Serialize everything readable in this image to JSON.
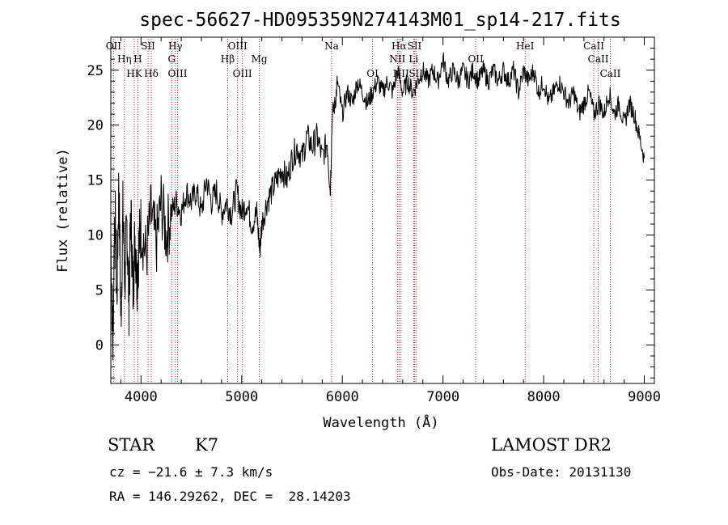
{
  "chart_data": {
    "type": "line",
    "title": "spec-56627-HD095359N274143M01_sp14-217.fits",
    "xlabel": "Wavelength (Å)",
    "ylabel": "Flux (relative)",
    "xlim": [
      3700,
      9100
    ],
    "ylim": [
      -3.5,
      28
    ],
    "xticks": [
      4000,
      5000,
      6000,
      7000,
      8000,
      9000
    ],
    "yticks": [
      0,
      5,
      10,
      15,
      20,
      25
    ],
    "grid": false,
    "line_color": "#000000",
    "marker_color": "#b22222",
    "series": [
      {
        "x": [
          3700,
          3720,
          3740,
          3760,
          3780,
          3800,
          3820,
          3840,
          3860,
          3880,
          3900,
          3920,
          3940,
          3960,
          3980,
          4000,
          4050,
          4100,
          4150,
          4200,
          4250,
          4300,
          4350,
          4400,
          4450,
          4500,
          4550,
          4600,
          4650,
          4700,
          4750,
          4800,
          4850,
          4900,
          4950,
          5000,
          5050,
          5100,
          5150,
          5180,
          5200,
          5250,
          5300,
          5350,
          5400,
          5450,
          5500,
          5550,
          5600,
          5650,
          5700,
          5750,
          5800,
          5850,
          5880,
          5900,
          5930,
          5950,
          6000,
          6050,
          6100,
          6150,
          6200,
          6250,
          6300,
          6350,
          6400,
          6450,
          6500,
          6550,
          6600,
          6650,
          6700,
          6750,
          6800,
          6850,
          6900,
          6950,
          7000,
          7050,
          7100,
          7150,
          7200,
          7250,
          7300,
          7350,
          7400,
          7450,
          7500,
          7550,
          7600,
          7650,
          7700,
          7750,
          7800,
          7850,
          7900,
          7950,
          8000,
          8050,
          8100,
          8150,
          8200,
          8250,
          8300,
          8350,
          8400,
          8450,
          8500,
          8550,
          8600,
          8650,
          8700,
          8750,
          8800,
          8850,
          8900,
          8950,
          9000
        ],
        "y": [
          10,
          0,
          13,
          4,
          15,
          2,
          12,
          6,
          11,
          4,
          12,
          5,
          10,
          6,
          9,
          11,
          8,
          12,
          9,
          13,
          10,
          12,
          13,
          12,
          14,
          13,
          14,
          12,
          15,
          13,
          14,
          12,
          13,
          12,
          14,
          12,
          13,
          11,
          12,
          8.5,
          11,
          13,
          14,
          15,
          16,
          15,
          17,
          18,
          17,
          19,
          18,
          19,
          17,
          18.5,
          14,
          21,
          22,
          24,
          21,
          23,
          22,
          24,
          23,
          22,
          23,
          24,
          23,
          24,
          23,
          25,
          23,
          24,
          23,
          24,
          25,
          24,
          25,
          24,
          26,
          24,
          25,
          24,
          25,
          24,
          25,
          24,
          25,
          24,
          25,
          24,
          25,
          24,
          25,
          23,
          25,
          24,
          25,
          23,
          24,
          22,
          23,
          24,
          23,
          22,
          23,
          21,
          22,
          23,
          21,
          22,
          21,
          23,
          21,
          22,
          20,
          22,
          21,
          19,
          17
        ]
      }
    ],
    "spectral_lines": [
      {
        "label": "OII",
        "x": 3727,
        "row": 0
      },
      {
        "label": "Hη",
        "x": 3835,
        "row": 1
      },
      {
        "label": "H",
        "x": 3968,
        "row": 1
      },
      {
        "label": "HK",
        "x": 3933,
        "row": 2
      },
      {
        "label": "Hδ",
        "x": 4102,
        "row": 2
      },
      {
        "label": "SII",
        "x": 4070,
        "row": 0
      },
      {
        "label": "Hγ",
        "x": 4341,
        "row": 0
      },
      {
        "label": "G",
        "x": 4305,
        "row": 1
      },
      {
        "label": "OIII",
        "x": 4363,
        "row": 2
      },
      {
        "label": "OIII",
        "x": 4959,
        "row": 0
      },
      {
        "label": "Hβ",
        "x": 4861,
        "row": 1
      },
      {
        "label": "OIII",
        "x": 5007,
        "row": 2
      },
      {
        "label": "Mg",
        "x": 5175,
        "row": 1
      },
      {
        "label": "Na",
        "x": 5893,
        "row": 0
      },
      {
        "label": "OI",
        "x": 6300,
        "row": 2
      },
      {
        "label": "Hα",
        "x": 6563,
        "row": 0
      },
      {
        "label": "NII",
        "x": 6548,
        "row": 1
      },
      {
        "label": "NII",
        "x": 6583,
        "row": 2
      },
      {
        "label": "SII",
        "x": 6717,
        "row": 0
      },
      {
        "label": "Li",
        "x": 6708,
        "row": 1
      },
      {
        "label": "SII",
        "x": 6731,
        "row": 2
      },
      {
        "label": "OII",
        "x": 7325,
        "row": 1
      },
      {
        "label": "HeI",
        "x": 7816,
        "row": 0
      },
      {
        "label": "CaII",
        "x": 8498,
        "row": 0
      },
      {
        "label": "CaII",
        "x": 8542,
        "row": 1
      },
      {
        "label": "CaII",
        "x": 8662,
        "row": 2
      }
    ]
  },
  "info": {
    "object_type": "STAR",
    "subclass": "K7",
    "survey": "LAMOST DR2",
    "velocity": "cz = −21.6 ± 7.3 km/s",
    "obs_date": "Obs-Date: 20131130",
    "coords": "RA = 146.29262, DEC =  28.14203"
  }
}
